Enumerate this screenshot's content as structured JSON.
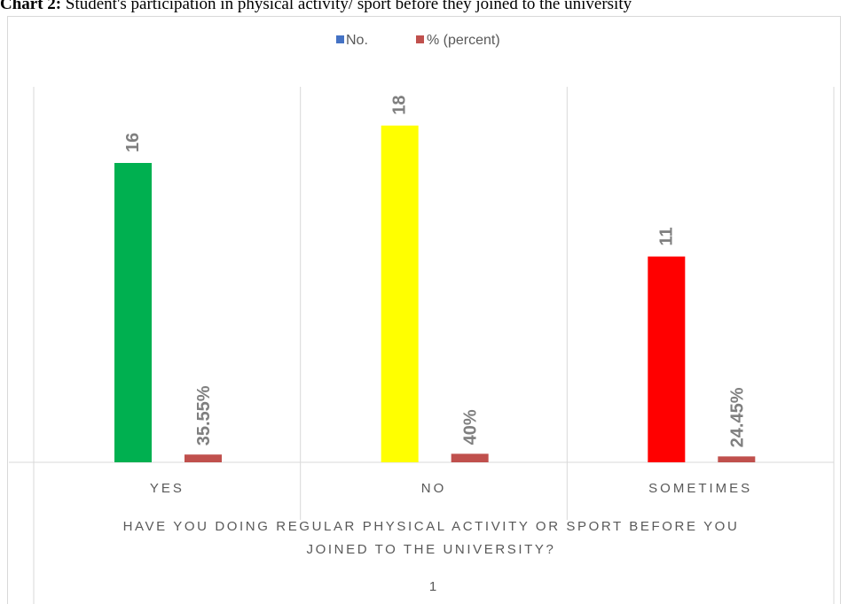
{
  "caption": {
    "lead": "Chart 2:",
    "text": " Student's participation in physical activity/ sport before they joined to the university"
  },
  "colors": {
    "series_no_legend": "#4472c4",
    "series_pct": "#c0504d",
    "bar_yes": "#00b050",
    "bar_no": "#ffff00",
    "bar_sometimes": "#ff0000",
    "data_label": "#7f7f7f",
    "axis_text": "#595959",
    "grid": "#d9d9d9"
  },
  "chart_data": {
    "type": "bar",
    "categories": [
      "YES",
      "NO",
      "SOMETIMES"
    ],
    "series": [
      {
        "name": "No.",
        "values": [
          16,
          18,
          11
        ],
        "value_labels": [
          "16",
          "18",
          "11"
        ],
        "point_colors": [
          "#00b050",
          "#ffff00",
          "#ff0000"
        ]
      },
      {
        "name": "% (percent)",
        "values": [
          0.3555,
          0.4,
          0.2445
        ],
        "value_labels": [
          "35.55%",
          "40%",
          "24.45%"
        ]
      }
    ],
    "xlabel": "HAVE YOU DOING REGULAR PHYSICAL ACTIVITY OR SPORT BEFORE YOU JOINED TO THE UNIVERSITY?",
    "xlabel_lines": [
      "HAVE YOU DOING REGULAR PHYSICAL ACTIVITY OR SPORT BEFORE YOU",
      "JOINED TO THE UNIVERSITY?"
    ],
    "outer_category": "1",
    "ylim": [
      0,
      20
    ],
    "legend": "top",
    "grid": "vertical category separators"
  }
}
